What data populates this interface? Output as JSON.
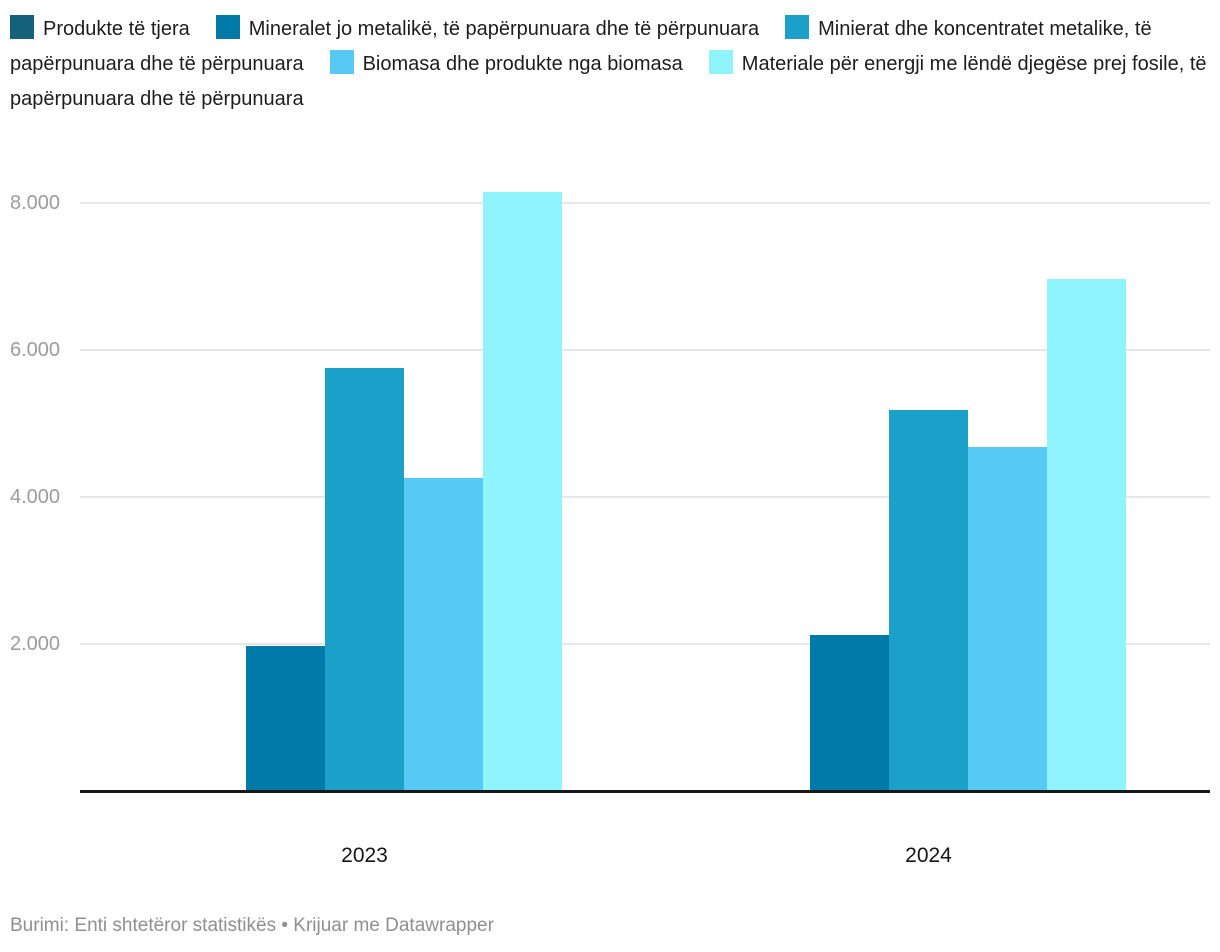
{
  "legend": {
    "items": [
      {
        "label": "Produkte të tjera",
        "color": "#15607a"
      },
      {
        "label": "Mineralet jo metalikë, të papërpunuara dhe të përpunuara",
        "color": "#007aa8"
      },
      {
        "label": "Minierat dhe koncentratet metalike, të papërpunuara dhe të përpunuara",
        "color": "#1ba0c9"
      },
      {
        "label": "Biomasa dhe produkte nga biomasa",
        "color": "#57c9f5"
      },
      {
        "label": "Materiale për energji me lëndë djegëse prej fosile, të papërpunuara dhe të përpunuara",
        "color": "#8ff4fd"
      }
    ]
  },
  "chart_data": {
    "type": "bar",
    "categories": [
      "2023",
      "2024"
    ],
    "series": [
      {
        "name": "Produkte të tjera",
        "color": "#15607a",
        "values": [
          0,
          0
        ]
      },
      {
        "name": "Mineralet jo metalikë, të papërpunuara dhe të përpunuara",
        "color": "#007aa8",
        "values": [
          1970,
          2120
        ]
      },
      {
        "name": "Minierat dhe koncentratet metalike, të papërpunuara dhe të përpunuara",
        "color": "#1ba0c9",
        "values": [
          5760,
          5180
        ]
      },
      {
        "name": "Biomasa dhe produkte nga biomasa",
        "color": "#57c9f5",
        "values": [
          4260,
          4680
        ]
      },
      {
        "name": "Materiale për energji me lëndë djegëse prej fosile, të papërpunuara dhe të përpunuara",
        "color": "#8ff4fd",
        "values": [
          8150,
          6970
        ]
      }
    ],
    "yticks": [
      2000,
      4000,
      6000,
      8000
    ],
    "ytick_labels": [
      "2.000",
      "4.000",
      "6.000",
      "8.000"
    ],
    "ylim": [
      0,
      8850
    ],
    "grid": true,
    "legend_position": "top"
  },
  "footer": {
    "text": "Burimi: Enti shtetëror statistikës • Krijuar me Datawrapper"
  }
}
